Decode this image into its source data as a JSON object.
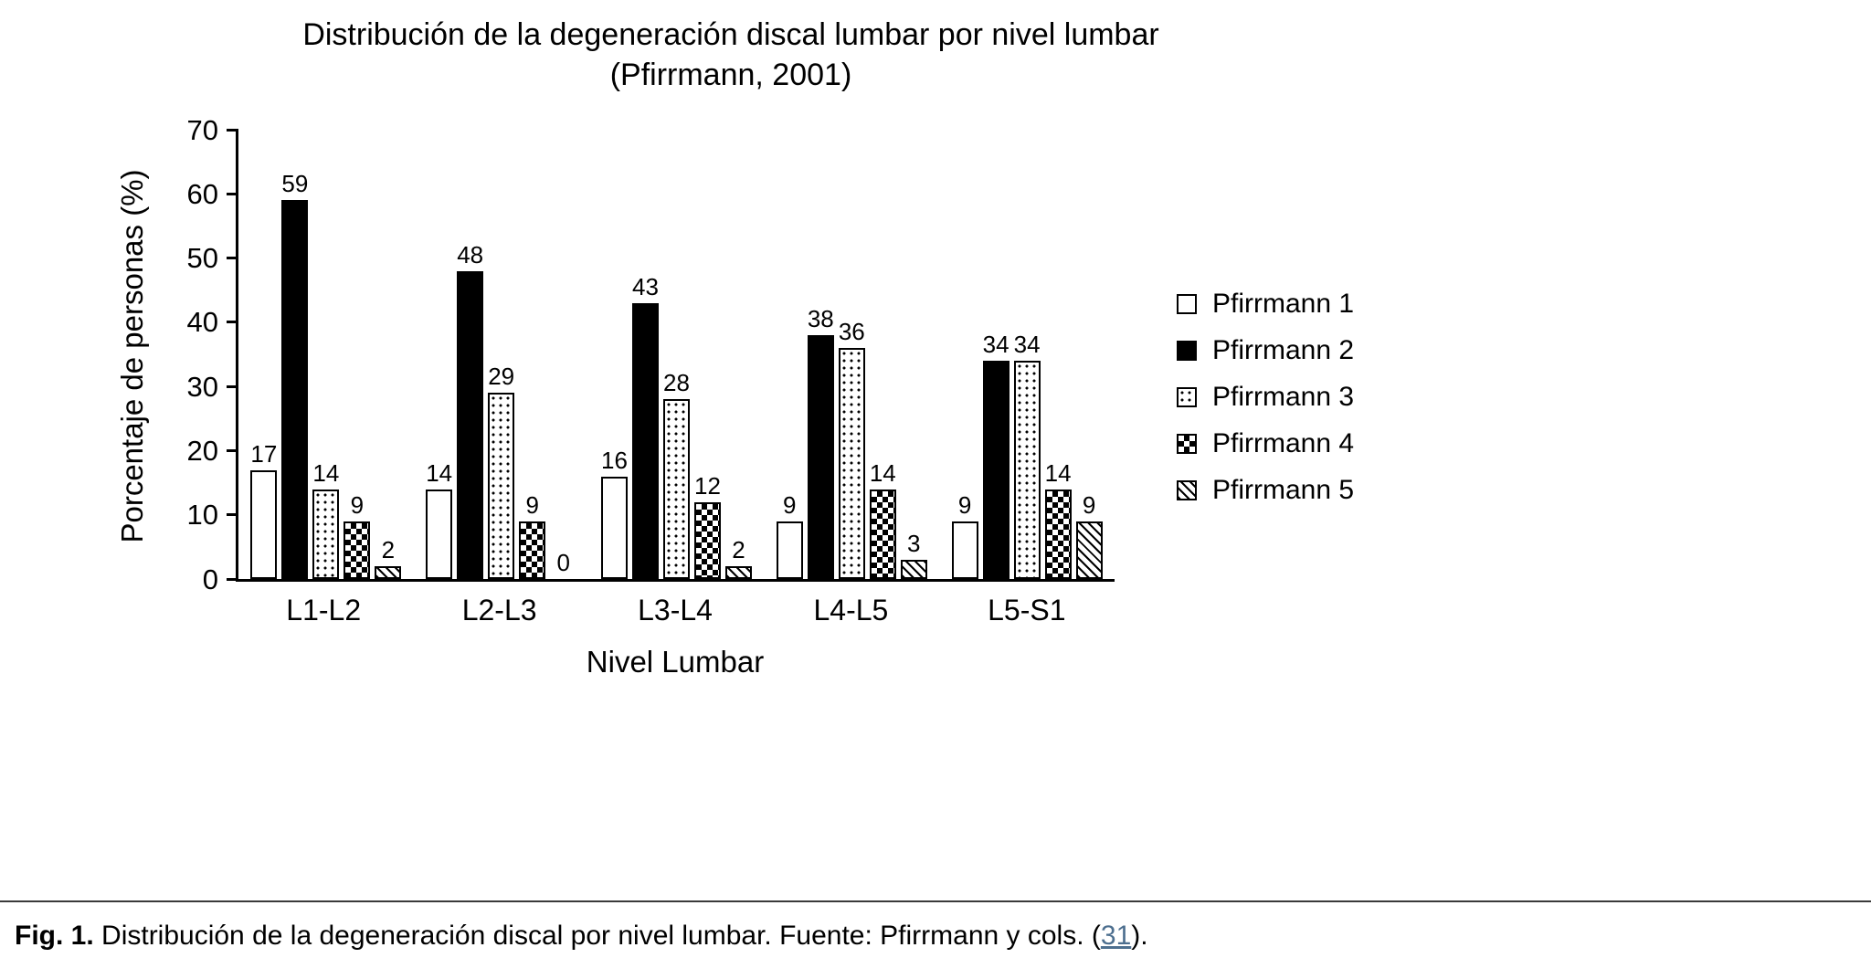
{
  "title": {
    "line1": "Distribución de la degeneración discal lumbar por nivel lumbar",
    "line2": "(Pfirrmann, 2001)"
  },
  "chart_data": {
    "type": "bar",
    "title": "Distribución de la degeneración discal lumbar por nivel lumbar (Pfirrmann, 2001)",
    "categories": [
      "L1-L2",
      "L2-L3",
      "L3-L4",
      "L4-L5",
      "L5-S1"
    ],
    "series": [
      {
        "name": "Pfirrmann 1",
        "pattern": "outline",
        "values": [
          17,
          14,
          16,
          9,
          9
        ]
      },
      {
        "name": "Pfirrmann 2",
        "pattern": "solid",
        "values": [
          59,
          48,
          43,
          38,
          34
        ]
      },
      {
        "name": "Pfirrmann 3",
        "pattern": "dots",
        "values": [
          14,
          29,
          28,
          36,
          34
        ]
      },
      {
        "name": "Pfirrmann 4",
        "pattern": "checker",
        "values": [
          9,
          9,
          12,
          14,
          14
        ]
      },
      {
        "name": "Pfirrmann 5",
        "pattern": "hatch",
        "values": [
          2,
          0,
          2,
          3,
          9
        ]
      }
    ],
    "xlabel": "Nivel Lumbar",
    "ylabel": "Porcentaje de personas (%)",
    "ylim": [
      0,
      70
    ],
    "ytick_step": 10,
    "yticks": [
      0,
      10,
      20,
      30,
      40,
      50,
      60,
      70
    ],
    "data_labels": true,
    "grid": false,
    "legend_position": "right"
  },
  "caption": {
    "prefix": "Fig. 1.",
    "text": " Distribución de la degeneración discal por nivel lumbar. Fuente: Pfirrmann y cols. (",
    "link": "31",
    "suffix": ")."
  },
  "colors": {
    "bar": "#000000",
    "link": "#4d6f8f",
    "divider": "#3a3a3a"
  }
}
